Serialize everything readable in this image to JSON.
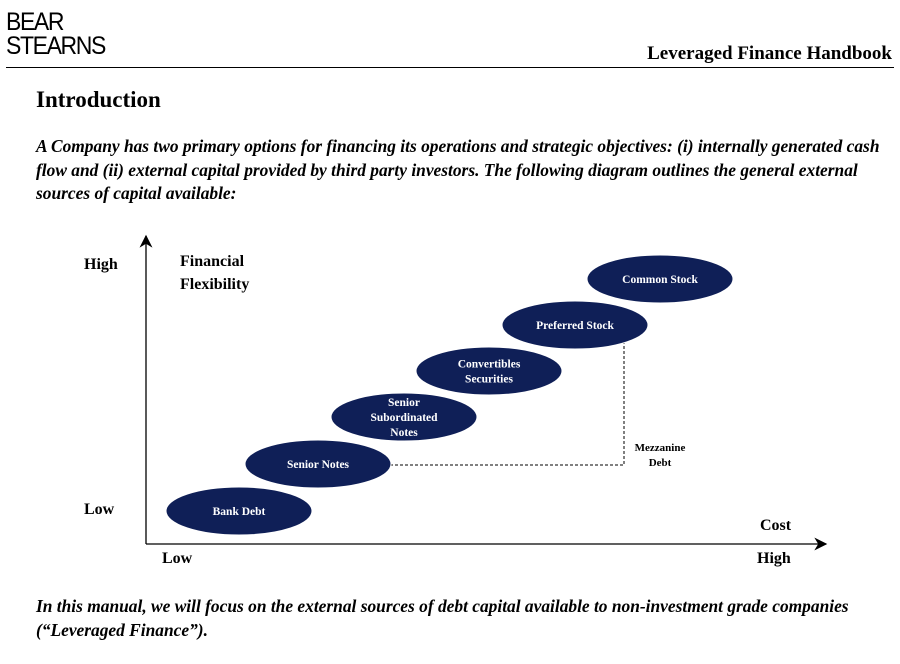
{
  "header": {
    "logo_line1": "BEAR",
    "logo_line2": "STEARNS",
    "handbook_title": "Leveraged Finance Handbook"
  },
  "section_title": "Introduction",
  "intro_text": "A Company has two primary options for financing its operations and strategic objectives:  (i) internally generated cash flow and (ii) external capital provided by third party investors.  The following diagram outlines the general external sources of capital available:",
  "diagram": {
    "y_axis_label_line1": "Financial",
    "y_axis_label_line2": "Flexibility",
    "y_high": "High",
    "y_low": "Low",
    "x_axis_label": "Cost",
    "x_low": "Low",
    "x_high": "High",
    "fill_color": "#0f1f57",
    "text_color": "#ffffff",
    "securities": [
      {
        "lines": [
          "Bank Debt"
        ]
      },
      {
        "lines": [
          "Senior Notes"
        ]
      },
      {
        "lines": [
          "Senior",
          "Subordinated",
          "Notes"
        ]
      },
      {
        "lines": [
          "Convertibles",
          "Securities"
        ]
      },
      {
        "lines": [
          "Preferred Stock"
        ]
      },
      {
        "lines": [
          "Common Stock"
        ]
      }
    ],
    "mezzanine_line1": "Mezzanine",
    "mezzanine_line2": "Debt"
  },
  "footer_text": "In this manual, we will focus on the external sources of debt capital available to non-investment grade companies (“Leveraged Finance”)."
}
